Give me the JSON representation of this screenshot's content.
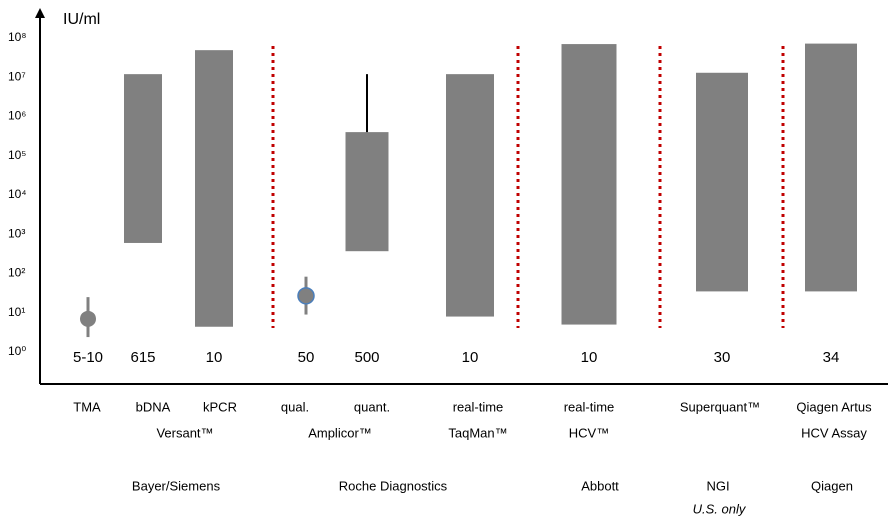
{
  "chart_data": {
    "type": "range",
    "ylabel": "IU/ml",
    "ylog": true,
    "ylim": [
      1,
      100000000
    ],
    "yticks": [
      {
        "value": 1,
        "label": "10⁰"
      },
      {
        "value": 10,
        "label": "10¹"
      },
      {
        "value": 100,
        "label": "10²"
      },
      {
        "value": 1000,
        "label": "10³"
      },
      {
        "value": 10000,
        "label": "10⁴"
      },
      {
        "value": 100000,
        "label": "10⁵"
      },
      {
        "value": 1000000,
        "label": "10⁶"
      },
      {
        "value": 10000000,
        "label": "10⁷"
      },
      {
        "value": 100000000,
        "label": "10⁸"
      }
    ],
    "color": "#808080",
    "divider_color": "#c00000",
    "items": [
      {
        "kind": "point",
        "value": 7,
        "low": 2.4,
        "high": 25,
        "limit": "5-10"
      },
      {
        "kind": "bar",
        "low": 600,
        "high": 12000000,
        "limit": "615"
      },
      {
        "kind": "bar",
        "low": 4.4,
        "high": 49000000,
        "limit": "10"
      },
      {
        "kind": "point",
        "value": 27,
        "low": 9,
        "high": 83,
        "limit": "50",
        "edge": "#4a7ebb"
      },
      {
        "kind": "bar",
        "low": 370,
        "high": 400000,
        "whisker_high": 12000000,
        "limit": "500"
      },
      {
        "kind": "bar",
        "low": 8,
        "high": 12000000,
        "limit": "10"
      },
      {
        "kind": "bar",
        "low": 5,
        "high": 70000000,
        "limit": "10"
      },
      {
        "kind": "bar",
        "low": 35,
        "high": 13000000,
        "limit": "30"
      },
      {
        "kind": "bar",
        "low": 35,
        "high": 72000000,
        "limit": "34"
      }
    ],
    "labels": [
      [
        "TMA",
        "bDNA",
        "kPCR",
        "qual.",
        "quant.",
        "real-time",
        "real-time",
        "Superquant™",
        "Qiagen Artus"
      ],
      [
        "Versant™",
        "Amplicor™",
        "TaqMan™",
        "HCV™",
        "HCV Assay"
      ],
      [
        "Bayer/Siemens",
        "Roche Diagnostics",
        "Abbott",
        "NGI",
        "Qiagen"
      ]
    ],
    "note": "U.S. only"
  }
}
